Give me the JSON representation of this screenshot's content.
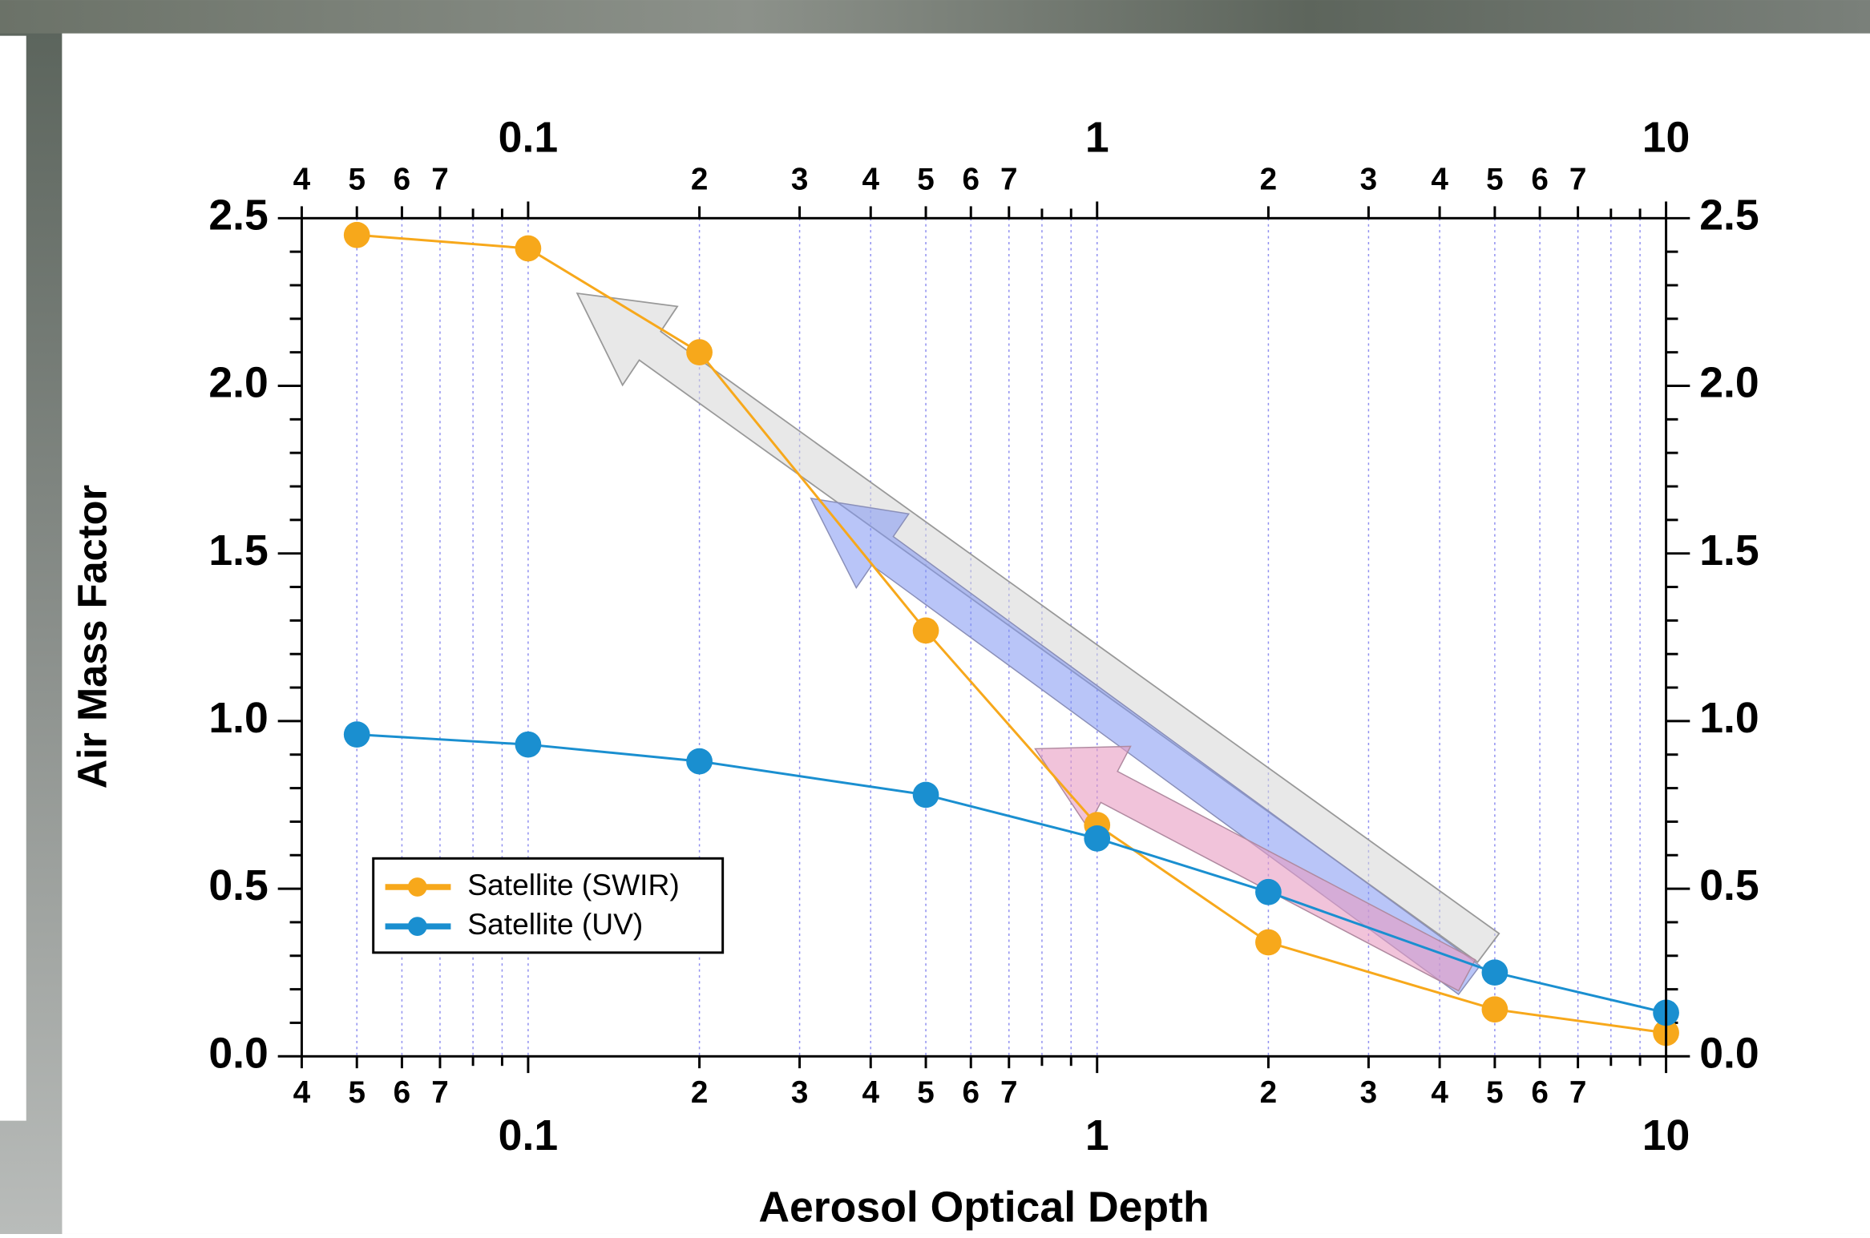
{
  "chart_data": {
    "type": "line",
    "x_label": "Aerosol Optical Depth",
    "y_label": "Air Mass Factor",
    "x": [
      0.05,
      0.1,
      0.2,
      0.5,
      1,
      2,
      5,
      10
    ],
    "series": [
      {
        "name": "Satellite (SWIR)",
        "color": "#f7a81b",
        "values": [
          2.45,
          2.41,
          2.1,
          1.27,
          0.69,
          0.34,
          0.14,
          0.07
        ]
      },
      {
        "name": "Satellite (UV)",
        "color": "#1a8fd0",
        "values": [
          0.96,
          0.93,
          0.88,
          0.78,
          0.65,
          0.49,
          0.25,
          0.13
        ]
      }
    ],
    "xlim": [
      0.04,
      10
    ],
    "xscale": "log",
    "xticks": [
      {
        "value": 0.04,
        "label": "4"
      },
      {
        "value": 0.05,
        "label": "5"
      },
      {
        "value": 0.06,
        "label": "6"
      },
      {
        "value": 0.07,
        "label": "7"
      },
      0.1,
      {
        "value": 0.2,
        "label": "2"
      },
      {
        "value": 0.3,
        "label": "3"
      },
      {
        "value": 0.4,
        "label": "4"
      },
      {
        "value": 0.5,
        "label": "5"
      },
      {
        "value": 0.6,
        "label": "6"
      },
      {
        "value": 0.7,
        "label": "7"
      },
      1,
      {
        "value": 2,
        "label": "2"
      },
      {
        "value": 3,
        "label": "3"
      },
      {
        "value": 4,
        "label": "4"
      },
      {
        "value": 5,
        "label": "5"
      },
      {
        "value": 6,
        "label": "6"
      },
      {
        "value": 7,
        "label": "7"
      },
      10
    ],
    "xminor_ticks": [
      0.08,
      0.09,
      0.8,
      0.9,
      8,
      9
    ],
    "ylim": [
      0,
      2.5
    ],
    "yticks": [
      {
        "value": 0,
        "label": "0.0"
      },
      0.5,
      {
        "value": 1,
        "label": "1.0"
      },
      1.5,
      {
        "value": 2,
        "label": "2.0"
      },
      2.5
    ],
    "yminor_ticks": [
      0.1,
      0.2,
      0.3,
      0.4,
      0.6,
      0.7,
      0.8,
      0.9,
      1.1,
      1.2,
      1.3,
      1.4,
      1.6,
      1.7,
      1.8,
      1.9,
      2.1,
      2.2,
      2.3,
      2.4
    ],
    "grid": "x",
    "legend": "lower left"
  }
}
